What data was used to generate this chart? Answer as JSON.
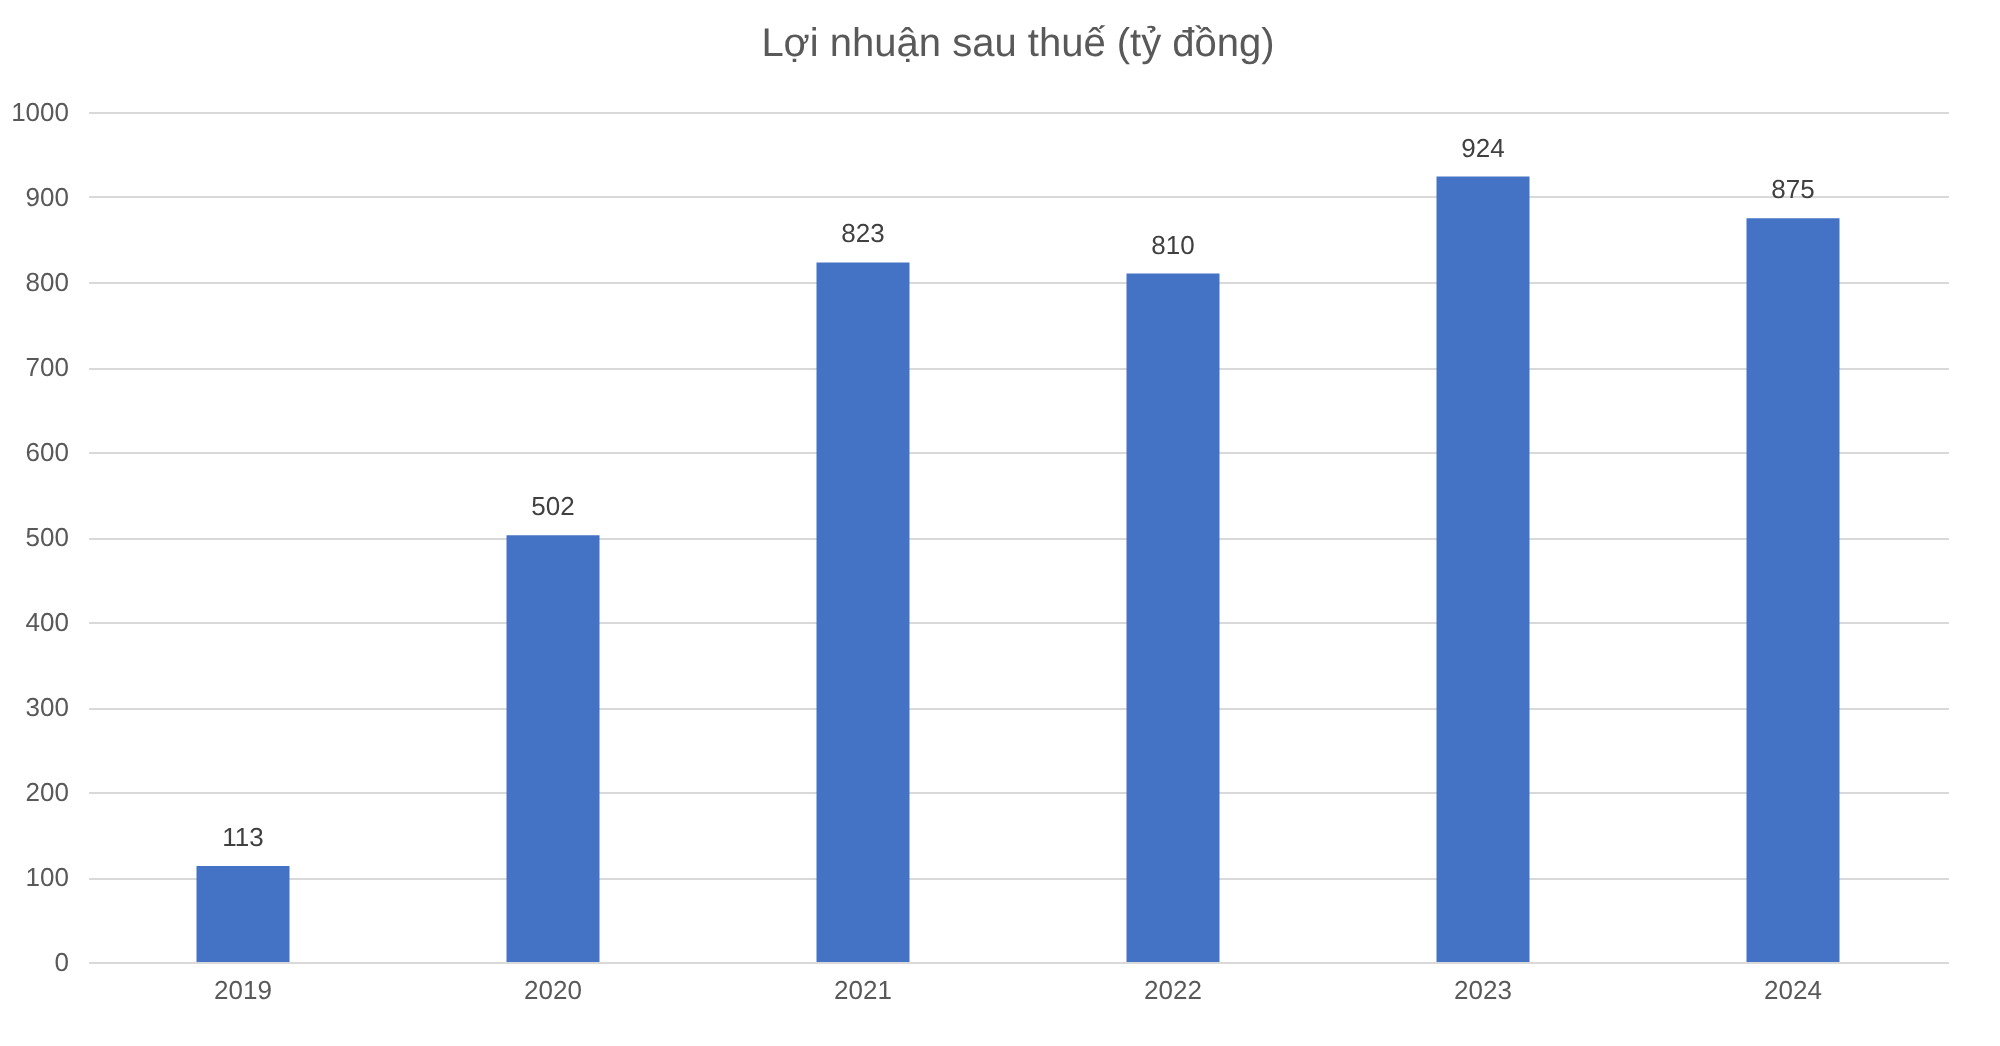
{
  "chart_data": {
    "type": "bar",
    "title": "Lợi nhuận sau thuế (tỷ đồng)",
    "categories": [
      "2019",
      "2020",
      "2021",
      "2022",
      "2023",
      "2024"
    ],
    "values": [
      113,
      502,
      823,
      810,
      924,
      875
    ],
    "color": "#4472c4",
    "ylim": [
      0,
      1000
    ],
    "yticks": [
      0,
      100,
      200,
      300,
      400,
      500,
      600,
      700,
      800,
      900,
      1000
    ],
    "grid": "y",
    "data_labels": true
  }
}
